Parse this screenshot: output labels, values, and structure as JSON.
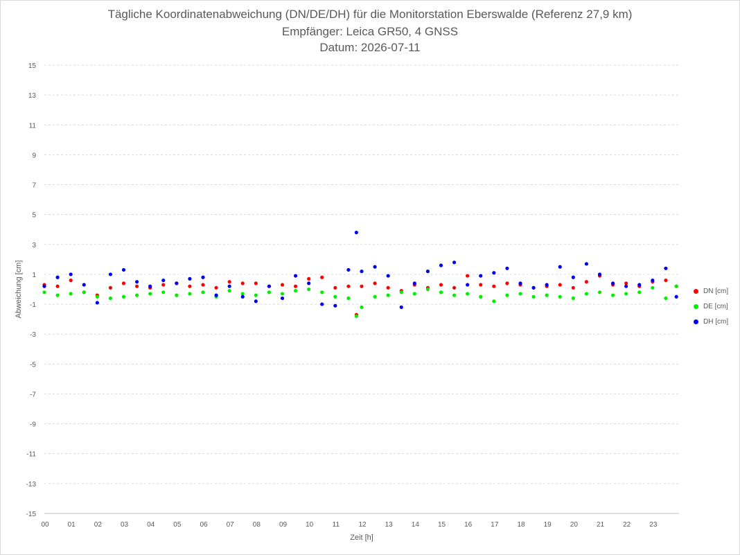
{
  "chart_data": {
    "type": "scatter",
    "title": [
      "Tägliche Koordinatenabweichung (DN/DE/DH) für die Monitorstation Eberswalde (Referenz 27,9 km)",
      "Empfänger: Leica GR50, 4 GNSS",
      "Datum: 2026-07-11"
    ],
    "xlabel": "Zeit [h]",
    "ylabel": "Abweichung [cm]",
    "xlim": [
      0,
      24
    ],
    "ylim": [
      -15,
      15
    ],
    "x_ticks": [
      "00",
      "01",
      "02",
      "03",
      "04",
      "05",
      "06",
      "07",
      "08",
      "09",
      "10",
      "11",
      "12",
      "13",
      "14",
      "15",
      "16",
      "17",
      "18",
      "19",
      "20",
      "21",
      "22",
      "23"
    ],
    "y_ticks": [
      15,
      13,
      11,
      9,
      7,
      5,
      3,
      1,
      -1,
      -3,
      -5,
      -7,
      -9,
      -11,
      -13,
      -15
    ],
    "y_tick_labels": [
      "15",
      "13",
      "11",
      "9",
      "7",
      "5",
      "3",
      "1",
      "-1",
      "-3",
      "-5",
      "-7",
      "-9",
      "-11",
      "-13",
      "-15"
    ],
    "grid": true,
    "legend_position": "right",
    "series": [
      {
        "name": "DN [cm]",
        "color": "#ff0000",
        "x": [
          0.0,
          0.5,
          1.0,
          1.5,
          2.0,
          2.5,
          3.0,
          3.5,
          4.0,
          4.5,
          5.0,
          5.5,
          6.0,
          6.5,
          7.0,
          7.5,
          8.0,
          8.5,
          9.0,
          9.5,
          10.0,
          10.5,
          11.0,
          11.5,
          11.8,
          12.0,
          12.5,
          13.0,
          13.5,
          14.0,
          14.5,
          15.0,
          15.5,
          16.0,
          16.5,
          17.0,
          17.5,
          18.0,
          18.5,
          19.0,
          19.5,
          20.0,
          20.5,
          21.0,
          21.5,
          22.0,
          22.5,
          23.0,
          23.5,
          23.9
        ],
        "values": [
          0.3,
          0.2,
          0.6,
          -0.2,
          -0.4,
          0.1,
          0.4,
          0.2,
          0.1,
          0.3,
          0.4,
          0.2,
          0.3,
          0.1,
          0.5,
          0.4,
          0.4,
          0.2,
          0.3,
          0.2,
          0.7,
          0.8,
          0.1,
          0.2,
          -1.7,
          0.2,
          0.4,
          0.1,
          -0.1,
          0.3,
          0.1,
          0.3,
          0.1,
          0.9,
          0.3,
          0.2,
          0.4,
          0.3,
          0.1,
          0.2,
          0.3,
          0.1,
          0.5,
          0.9,
          0.3,
          0.4,
          0.2,
          0.5,
          0.6,
          0.2
        ]
      },
      {
        "name": "DE [cm]",
        "color": "#00ee00",
        "x": [
          0.0,
          0.5,
          1.0,
          1.5,
          2.0,
          2.5,
          3.0,
          3.5,
          4.0,
          4.5,
          5.0,
          5.5,
          6.0,
          6.5,
          7.0,
          7.5,
          8.0,
          8.5,
          9.0,
          9.5,
          10.0,
          10.5,
          11.0,
          11.5,
          11.8,
          12.0,
          12.5,
          13.0,
          13.5,
          14.0,
          14.5,
          15.0,
          15.5,
          16.0,
          16.5,
          17.0,
          17.5,
          18.0,
          18.5,
          19.0,
          19.5,
          20.0,
          20.5,
          21.0,
          21.5,
          22.0,
          22.5,
          23.0,
          23.5,
          23.9
        ],
        "values": [
          -0.2,
          -0.4,
          -0.3,
          -0.2,
          -0.5,
          -0.6,
          -0.5,
          -0.4,
          -0.3,
          -0.2,
          -0.4,
          -0.3,
          -0.2,
          -0.5,
          -0.1,
          -0.3,
          -0.4,
          -0.2,
          -0.3,
          -0.1,
          0.0,
          -0.2,
          -0.5,
          -0.6,
          -1.8,
          -1.2,
          -0.5,
          -0.4,
          -0.2,
          -0.3,
          0.0,
          -0.2,
          -0.4,
          -0.3,
          -0.5,
          -0.8,
          -0.4,
          -0.3,
          -0.5,
          -0.4,
          -0.5,
          -0.6,
          -0.3,
          -0.2,
          -0.4,
          -0.3,
          -0.2,
          0.1,
          -0.6,
          0.2
        ]
      },
      {
        "name": "DH [cm]",
        "color": "#0000ee",
        "x": [
          0.0,
          0.5,
          1.0,
          1.5,
          2.0,
          2.5,
          3.0,
          3.5,
          4.0,
          4.5,
          5.0,
          5.5,
          6.0,
          6.5,
          7.0,
          7.5,
          8.0,
          8.5,
          9.0,
          9.5,
          10.0,
          10.5,
          11.0,
          11.5,
          11.8,
          12.0,
          12.5,
          13.0,
          13.5,
          14.0,
          14.5,
          15.0,
          15.5,
          16.0,
          16.5,
          17.0,
          17.5,
          18.0,
          18.5,
          19.0,
          19.5,
          20.0,
          20.5,
          21.0,
          21.5,
          22.0,
          22.5,
          23.0,
          23.5,
          23.9
        ],
        "values": [
          0.2,
          0.8,
          1.0,
          0.3,
          -0.9,
          1.0,
          1.3,
          0.5,
          0.2,
          0.6,
          0.4,
          0.7,
          0.8,
          -0.4,
          0.2,
          -0.5,
          -0.8,
          0.2,
          -0.6,
          0.9,
          0.4,
          -1.0,
          -1.1,
          1.3,
          3.8,
          1.2,
          1.5,
          0.9,
          -1.2,
          0.4,
          1.2,
          1.6,
          1.8,
          0.3,
          0.9,
          1.1,
          1.4,
          0.4,
          0.1,
          0.3,
          1.5,
          0.8,
          1.7,
          1.0,
          0.4,
          0.2,
          0.3,
          0.6,
          1.4,
          -0.5
        ]
      }
    ]
  }
}
